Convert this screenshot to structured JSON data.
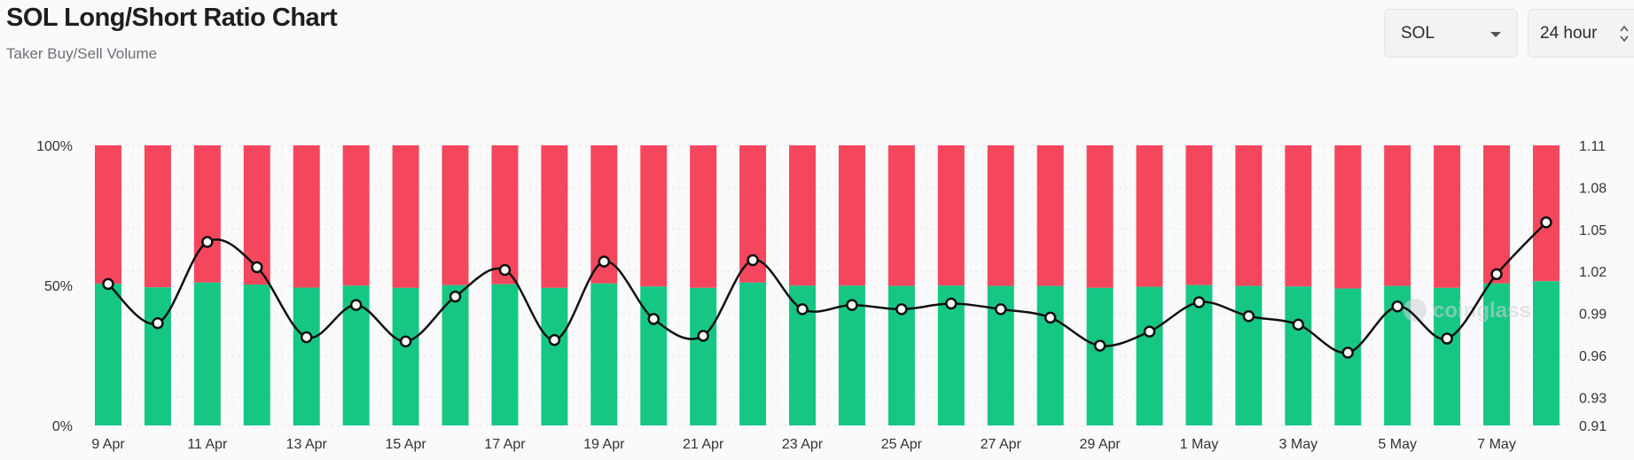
{
  "header": {
    "title": "SOL Long/Short Ratio Chart",
    "subtitle": "Taker Buy/Sell Volume"
  },
  "controls": {
    "coin_value": "SOL",
    "period_value": "24 hour",
    "coin_icon": "chevron-down-icon",
    "period_icon": "up-down-chevron-icon"
  },
  "watermark": {
    "text": "coinglass"
  },
  "colors": {
    "long": "#16c784",
    "short": "#f4475d",
    "line": "#111111",
    "marker_fill": "#ffffff"
  },
  "chart_data": {
    "type": "bar",
    "stacked_percent": true,
    "categories": [
      "9 Apr",
      "10 Apr",
      "11 Apr",
      "12 Apr",
      "13 Apr",
      "14 Apr",
      "15 Apr",
      "16 Apr",
      "17 Apr",
      "18 Apr",
      "19 Apr",
      "20 Apr",
      "21 Apr",
      "22 Apr",
      "23 Apr",
      "24 Apr",
      "25 Apr",
      "26 Apr",
      "27 Apr",
      "28 Apr",
      "29 Apr",
      "30 Apr",
      "1 May",
      "2 May",
      "3 May",
      "4 May",
      "5 May",
      "6 May",
      "7 May",
      "8 May"
    ],
    "x_tick_labels": [
      "9 Apr",
      "11 Apr",
      "13 Apr",
      "15 Apr",
      "17 Apr",
      "19 Apr",
      "21 Apr",
      "23 Apr",
      "25 Apr",
      "27 Apr",
      "29 Apr",
      "1 May",
      "3 May",
      "5 May",
      "7 May"
    ],
    "series": [
      {
        "name": "Long",
        "values": [
          50.6,
          49.3,
          51.0,
          50.3,
          49.2,
          49.9,
          49.1,
          50.1,
          50.4,
          49.1,
          50.7,
          49.6,
          49.1,
          51.0,
          49.9,
          49.9,
          49.8,
          49.9,
          49.8,
          49.8,
          49.1,
          49.5,
          50.1,
          49.8,
          49.6,
          48.9,
          49.8,
          49.1,
          50.7,
          51.5
        ]
      },
      {
        "name": "Short",
        "values": [
          49.4,
          50.7,
          49.0,
          49.7,
          50.8,
          50.1,
          50.9,
          49.9,
          49.6,
          50.9,
          49.3,
          50.4,
          50.9,
          49.0,
          50.1,
          50.1,
          50.2,
          50.1,
          50.2,
          50.2,
          50.9,
          50.5,
          49.9,
          50.2,
          50.4,
          51.1,
          50.2,
          50.9,
          49.3,
          48.5
        ]
      },
      {
        "name": "Long/Short Ratio",
        "axis": "right",
        "values": [
          1.011,
          0.983,
          1.041,
          1.023,
          0.973,
          0.996,
          0.97,
          1.002,
          1.021,
          0.971,
          1.027,
          0.986,
          0.974,
          1.028,
          0.993,
          0.996,
          0.993,
          0.997,
          0.993,
          0.987,
          0.967,
          0.977,
          0.998,
          0.988,
          0.982,
          0.962,
          0.995,
          0.972,
          1.018,
          1.055
        ]
      }
    ],
    "y_left_ticks": [
      "0%",
      "50%",
      "100%"
    ],
    "ylim_left": [
      0,
      100
    ],
    "y_right_ticks": [
      "0.91",
      "0.93",
      "0.96",
      "0.99",
      "1.02",
      "1.05",
      "1.08",
      "1.11"
    ],
    "ylim_right": [
      0.91,
      1.11
    ],
    "grid": true
  }
}
